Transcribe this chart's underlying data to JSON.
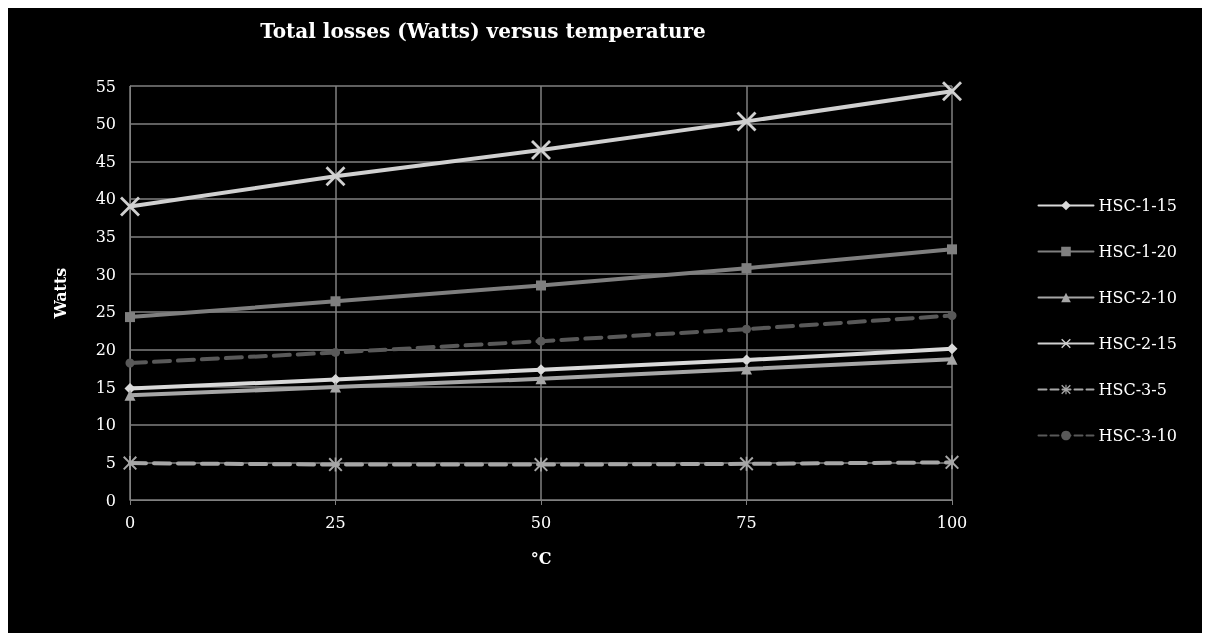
{
  "chart_data": {
    "type": "line",
    "title": "Total losses (Watts) versus temperature",
    "xlabel": "°C",
    "ylabel": "Watts",
    "x": [
      0,
      25,
      50,
      75,
      100
    ],
    "xlim": [
      0,
      100
    ],
    "xticks": [
      0,
      25,
      50,
      75,
      100
    ],
    "ylim": [
      0,
      55
    ],
    "yticks": [
      0,
      5,
      10,
      15,
      20,
      25,
      30,
      35,
      40,
      45,
      50,
      55
    ],
    "grid": true,
    "legend": "right",
    "series": [
      {
        "name": "HSC-1-15",
        "color": "#d9d9d9",
        "marker": "diamond",
        "line_style": "solid",
        "values": [
          14.8,
          16,
          17.3,
          18.6,
          20.1
        ]
      },
      {
        "name": "HSC-1-20",
        "color": "#7f7f7f",
        "marker": "square",
        "line_style": "solid",
        "values": [
          24.3,
          26.4,
          28.5,
          30.8,
          33.3
        ]
      },
      {
        "name": "HSC-2-10",
        "color": "#a6a6a6",
        "marker": "triangle",
        "line_style": "solid",
        "values": [
          13.9,
          15,
          16.1,
          17.4,
          18.7
        ]
      },
      {
        "name": "HSC-2-15",
        "color": "#d0d0d0",
        "marker": "cross",
        "line_style": "solid",
        "values": [
          39,
          43,
          46.5,
          50.3,
          54.3
        ]
      },
      {
        "name": "HSC-3-5",
        "color": "#a6a6a6",
        "marker": "star",
        "line_style": "dashed",
        "values": [
          4.9,
          4.7,
          4.7,
          4.8,
          5
        ]
      },
      {
        "name": "HSC-3-10",
        "color": "#595959",
        "marker": "circle",
        "line_style": "dashed",
        "values": [
          18.2,
          19.6,
          21.1,
          22.7,
          24.5
        ]
      }
    ]
  }
}
